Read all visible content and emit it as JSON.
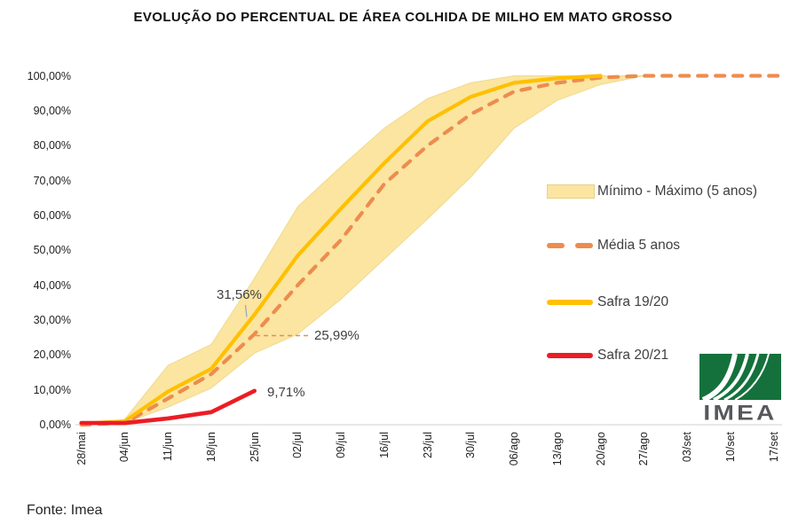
{
  "header": {
    "title": "EVOLUÇÃO DO PERCENTUAL DE ÁREA COLHIDA DE MILHO EM MATO GROSSO"
  },
  "chart_data": {
    "type": "line",
    "title": "EVOLUÇÃO DO PERCENTUAL DE ÁREA COLHIDA DE MILHO EM MATO GROSSO",
    "categories": [
      "28/mai",
      "04/jun",
      "11/jun",
      "18/jun",
      "25/jun",
      "02/jul",
      "09/jul",
      "16/jul",
      "23/jul",
      "30/jul",
      "06/ago",
      "13/ago",
      "20/ago",
      "27/ago",
      "03/set",
      "10/set",
      "17/set"
    ],
    "y_ticks": [
      "100,00%",
      "90,00%",
      "80,00%",
      "70,00%",
      "60,00%",
      "50,00%",
      "40,00%",
      "30,00%",
      "20,00%",
      "10,00%",
      "0,00%"
    ],
    "ylim": [
      0,
      100
    ],
    "grid": "off",
    "legend_position": "right",
    "series": [
      {
        "name": "Mínimo (5 anos)",
        "role": "band-lower",
        "values": [
          0,
          0.5,
          5,
          10.5,
          20.5,
          26,
          36,
          47.5,
          59,
          71,
          85,
          93,
          97.5,
          100
        ]
      },
      {
        "name": "Máximo (5 anos)",
        "role": "band-upper",
        "values": [
          0,
          1.5,
          17,
          23,
          42,
          62.5,
          74,
          85,
          93.5,
          98,
          100,
          100,
          100,
          100
        ]
      },
      {
        "name": "Média 5 anos",
        "role": "dashed-line",
        "values": [
          0,
          0.5,
          7.5,
          14.5,
          25.99,
          40,
          53,
          69,
          80,
          89,
          95.5,
          98,
          99.5,
          100,
          100,
          100,
          100
        ]
      },
      {
        "name": "Safra 19/20",
        "role": "solid-line",
        "values": [
          0.3,
          1,
          9.5,
          16,
          31.56,
          48.5,
          62,
          75,
          87,
          94,
          98,
          99.3,
          100
        ]
      },
      {
        "name": "Safra 20/21",
        "role": "solid-line",
        "values": [
          0.5,
          0.5,
          1.8,
          3.6,
          9.71
        ]
      }
    ],
    "annotations": [
      {
        "series": "Safra 19/20",
        "category": "25/jun",
        "value": 31.56,
        "text": "31,56%"
      },
      {
        "series": "Média 5 anos",
        "category": "25/jun",
        "value": 25.99,
        "text": "25,99%"
      },
      {
        "series": "Safra 20/21",
        "category": "25/jun",
        "value": 9.71,
        "text": "9,71%"
      }
    ]
  },
  "legend": {
    "items": [
      {
        "label": "Mínimo - Máximo (5 anos)",
        "swatch": "band"
      },
      {
        "label": "Média 5 anos",
        "swatch": "dashed"
      },
      {
        "label": "Safra 19/20",
        "swatch": "solid-yellow"
      },
      {
        "label": "Safra 20/21",
        "swatch": "solid-red"
      }
    ]
  },
  "colors": {
    "band_fill": "#FBE5A0",
    "band_border": "#EFDA8F",
    "media_orange": "#ED8C4F",
    "safra_19_20_yellow": "#FFC000",
    "safra_20_21_red": "#EC1C24",
    "axis_line": "#D9D9D9",
    "callout_gray": "#98A9C0",
    "text_dark": "#262626",
    "annotation_text": "#404040",
    "logo_green": "#15713C",
    "logo_text_gray": "#56585C"
  },
  "footer": {
    "source": "Fonte: Imea"
  },
  "logo": {
    "text": "IMEA"
  }
}
